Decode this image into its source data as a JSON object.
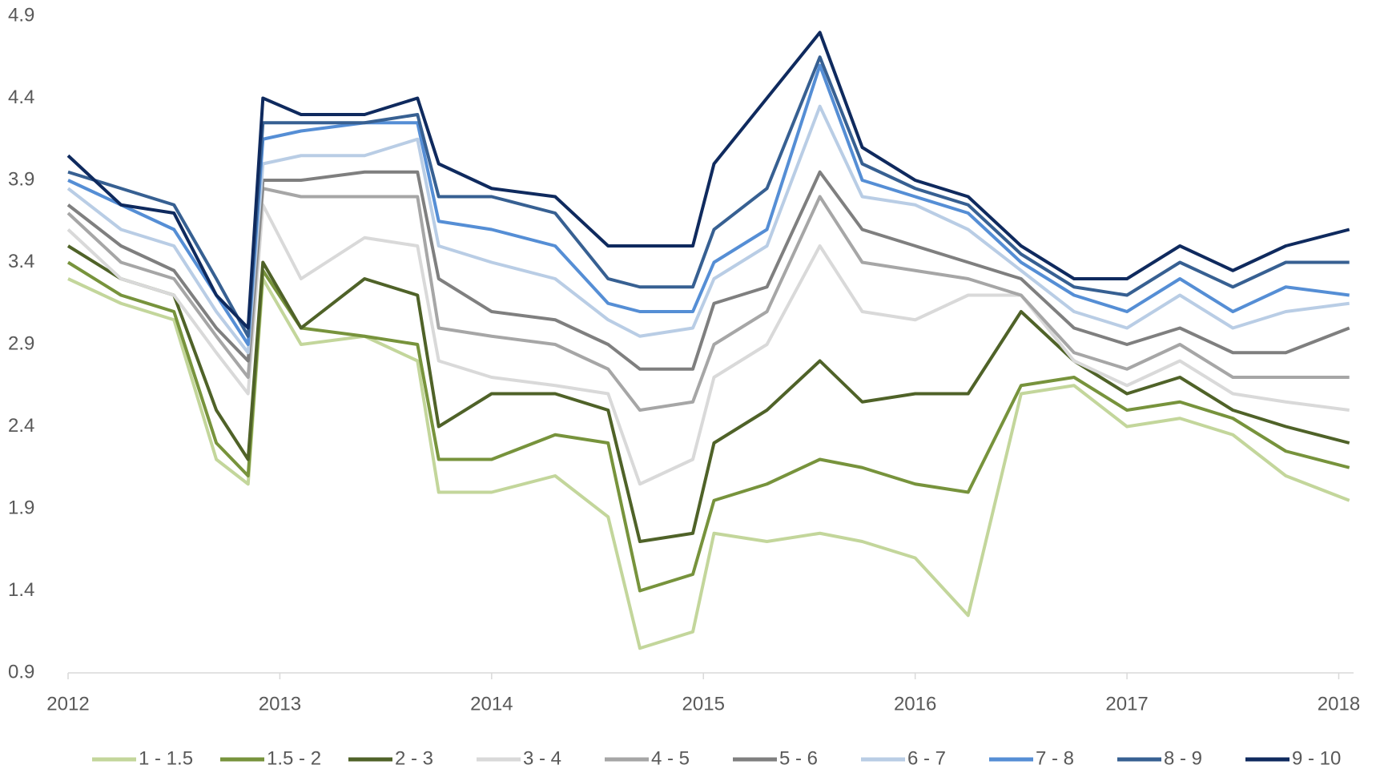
{
  "chart_data": {
    "type": "line",
    "x": [
      2012.0,
      2012.25,
      2012.5,
      2012.7,
      2012.85,
      2012.92,
      2013.1,
      2013.4,
      2013.65,
      2013.75,
      2014.0,
      2014.3,
      2014.55,
      2014.7,
      2014.95,
      2015.05,
      2015.3,
      2015.55,
      2015.75,
      2016.0,
      2016.25,
      2016.5,
      2016.75,
      2017.0,
      2017.25,
      2017.5,
      2017.75,
      2018.05
    ],
    "series": [
      {
        "name": "1 - 1.5",
        "color": "#c3d69b",
        "values": [
          3.3,
          3.15,
          3.05,
          2.2,
          2.05,
          3.3,
          2.9,
          2.95,
          2.8,
          2.0,
          2.0,
          2.1,
          1.85,
          1.05,
          1.15,
          1.75,
          1.7,
          1.75,
          1.7,
          1.6,
          1.25,
          2.6,
          2.65,
          2.4,
          2.45,
          2.35,
          2.1,
          1.95
        ]
      },
      {
        "name": "1.5 - 2",
        "color": "#77933c",
        "values": [
          3.4,
          3.2,
          3.1,
          2.3,
          2.1,
          3.35,
          3.0,
          2.95,
          2.9,
          2.2,
          2.2,
          2.35,
          2.3,
          1.4,
          1.5,
          1.95,
          2.05,
          2.2,
          2.15,
          2.05,
          2.0,
          2.65,
          2.7,
          2.5,
          2.55,
          2.45,
          2.25,
          2.15
        ]
      },
      {
        "name": "2 - 3",
        "color": "#4f6228",
        "values": [
          3.5,
          3.3,
          3.2,
          2.5,
          2.2,
          3.4,
          3.0,
          3.3,
          3.2,
          2.4,
          2.6,
          2.6,
          2.5,
          1.7,
          1.75,
          2.3,
          2.5,
          2.8,
          2.55,
          2.6,
          2.6,
          3.1,
          2.8,
          2.6,
          2.7,
          2.5,
          2.4,
          2.3
        ]
      },
      {
        "name": "3 - 4",
        "color": "#d9d9d9",
        "values": [
          3.6,
          3.3,
          3.2,
          2.85,
          2.6,
          3.75,
          3.3,
          3.55,
          3.5,
          2.8,
          2.7,
          2.65,
          2.6,
          2.05,
          2.2,
          2.7,
          2.9,
          3.5,
          3.1,
          3.05,
          3.2,
          3.2,
          2.8,
          2.65,
          2.8,
          2.6,
          2.55,
          2.5
        ]
      },
      {
        "name": "4 - 5",
        "color": "#a6a6a6",
        "values": [
          3.7,
          3.4,
          3.3,
          2.95,
          2.7,
          3.85,
          3.8,
          3.8,
          3.8,
          3.0,
          2.95,
          2.9,
          2.75,
          2.5,
          2.55,
          2.9,
          3.1,
          3.8,
          3.4,
          3.35,
          3.3,
          3.2,
          2.85,
          2.75,
          2.9,
          2.7,
          2.7,
          2.7
        ]
      },
      {
        "name": "5 - 6",
        "color": "#7f7f7f",
        "values": [
          3.75,
          3.5,
          3.35,
          3.0,
          2.8,
          3.9,
          3.9,
          3.95,
          3.95,
          3.3,
          3.1,
          3.05,
          2.9,
          2.75,
          2.75,
          3.15,
          3.25,
          3.95,
          3.6,
          3.5,
          3.4,
          3.3,
          3.0,
          2.9,
          3.0,
          2.85,
          2.85,
          3.0
        ]
      },
      {
        "name": "6 - 7",
        "color": "#b9cde5",
        "values": [
          3.85,
          3.6,
          3.5,
          3.1,
          2.85,
          4.0,
          4.05,
          4.05,
          4.15,
          3.5,
          3.4,
          3.3,
          3.05,
          2.95,
          3.0,
          3.3,
          3.5,
          4.35,
          3.8,
          3.75,
          3.6,
          3.35,
          3.1,
          3.0,
          3.2,
          3.0,
          3.1,
          3.15
        ]
      },
      {
        "name": "7 - 8",
        "color": "#558ed5",
        "values": [
          3.9,
          3.75,
          3.6,
          3.2,
          2.9,
          4.15,
          4.2,
          4.25,
          4.25,
          3.65,
          3.6,
          3.5,
          3.15,
          3.1,
          3.1,
          3.4,
          3.6,
          4.6,
          3.9,
          3.8,
          3.7,
          3.4,
          3.2,
          3.1,
          3.3,
          3.1,
          3.25,
          3.2
        ]
      },
      {
        "name": "8 - 9",
        "color": "#376092",
        "values": [
          3.95,
          3.85,
          3.75,
          3.3,
          2.95,
          4.25,
          4.25,
          4.25,
          4.3,
          3.8,
          3.8,
          3.7,
          3.3,
          3.25,
          3.25,
          3.6,
          3.85,
          4.65,
          4.0,
          3.85,
          3.75,
          3.45,
          3.25,
          3.2,
          3.4,
          3.25,
          3.4,
          3.4
        ]
      },
      {
        "name": "9 - 10",
        "color": "#0f2a5e",
        "values": [
          4.05,
          3.75,
          3.7,
          3.2,
          3.0,
          4.4,
          4.3,
          4.3,
          4.4,
          4.0,
          3.85,
          3.8,
          3.5,
          3.5,
          3.5,
          4.0,
          4.4,
          4.8,
          4.1,
          3.9,
          3.8,
          3.5,
          3.3,
          3.3,
          3.5,
          3.35,
          3.5,
          3.6
        ]
      }
    ],
    "xlim": [
      2012,
      2018.07
    ],
    "xticks": [
      2012,
      2013,
      2014,
      2015,
      2016,
      2017,
      2018
    ],
    "ylim": [
      0.9,
      4.9
    ],
    "yticks": [
      0.9,
      1.4,
      1.9,
      2.4,
      2.9,
      3.4,
      3.9,
      4.4,
      4.9
    ],
    "grid": false,
    "legend": "bottom"
  }
}
